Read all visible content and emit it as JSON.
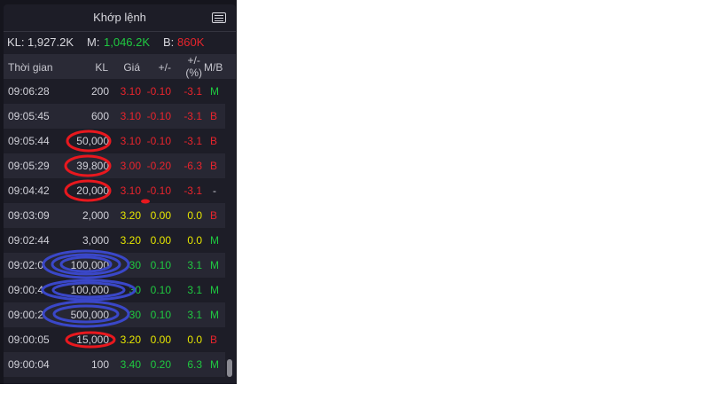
{
  "header": {
    "title": "Khớp lệnh",
    "menu_icon": "list-icon"
  },
  "summary": {
    "kl_label": "KL:",
    "kl_value": "1,927.2K",
    "m_label": "M:",
    "m_value": "1,046.2K",
    "b_label": "B:",
    "b_value": "860K"
  },
  "columns": [
    "Thời gian",
    "KL",
    "Giá",
    "+/-",
    "+/-\n(%)",
    "M/B"
  ],
  "colors": {
    "red": "#e8242c",
    "green": "#1fc940",
    "yellow": "#e6e600",
    "annotation_red": "#e8181e",
    "annotation_blue": "#3a47c8"
  },
  "rows": [
    {
      "time": "09:06:28",
      "kl": "200",
      "price": "3.10",
      "change": "-0.10",
      "pct": "-3.1",
      "side": "M",
      "tone": "red"
    },
    {
      "time": "09:05:45",
      "kl": "600",
      "price": "3.10",
      "change": "-0.10",
      "pct": "-3.1",
      "side": "B",
      "tone": "red"
    },
    {
      "time": "09:05:44",
      "kl": "50,000",
      "price": "3.10",
      "change": "-0.10",
      "pct": "-3.1",
      "side": "B",
      "tone": "red"
    },
    {
      "time": "09:05:29",
      "kl": "39,800",
      "price": "3.00",
      "change": "-0.20",
      "pct": "-6.3",
      "side": "B",
      "tone": "red"
    },
    {
      "time": "09:04:42",
      "kl": "20,000",
      "price": "3.10",
      "change": "-0.10",
      "pct": "-3.1",
      "side": "-",
      "tone": "red"
    },
    {
      "time": "09:03:09",
      "kl": "2,000",
      "price": "3.20",
      "change": "0.00",
      "pct": "0.0",
      "side": "B",
      "tone": "yellow"
    },
    {
      "time": "09:02:44",
      "kl": "3,000",
      "price": "3.20",
      "change": "0.00",
      "pct": "0.0",
      "side": "M",
      "tone": "yellow"
    },
    {
      "time": "09:02:0",
      "kl": "100,000",
      "price": "30",
      "change": "0.10",
      "pct": "3.1",
      "side": "M",
      "tone": "green"
    },
    {
      "time": "09:00:4",
      "kl": "100,000",
      "price": "30",
      "change": "0.10",
      "pct": "3.1",
      "side": "M",
      "tone": "green"
    },
    {
      "time": "09:00:2",
      "kl": "500,000",
      "price": "30",
      "change": "0.10",
      "pct": "3.1",
      "side": "M",
      "tone": "green"
    },
    {
      "time": "09:00:05",
      "kl": "15,000",
      "price": "3.20",
      "change": "0.00",
      "pct": "0.0",
      "side": "B",
      "tone": "yellow"
    },
    {
      "time": "09:00:04",
      "kl": "100",
      "price": "3.40",
      "change": "0.20",
      "pct": "6.3",
      "side": "M",
      "tone": "green"
    }
  ]
}
